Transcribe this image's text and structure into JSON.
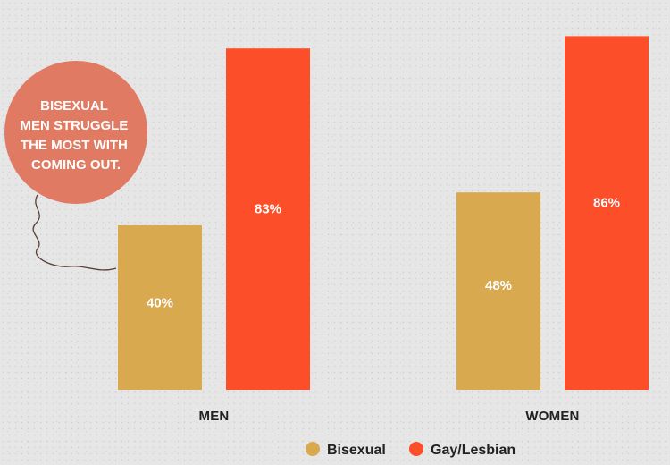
{
  "chart_data": {
    "type": "bar",
    "categories": [
      "MEN",
      "WOMEN"
    ],
    "series": [
      {
        "name": "Bisexual",
        "values": [
          40,
          48
        ],
        "labels": [
          "40%",
          "48%"
        ],
        "color": "#d9a94f"
      },
      {
        "name": "Gay/Lesbian",
        "values": [
          83,
          86
        ],
        "labels": [
          "83%",
          "86%"
        ],
        "color": "#fc4e29"
      }
    ],
    "ylim": [
      0,
      90
    ],
    "grid": false,
    "legend_placement": "bottom",
    "annotation": {
      "lines": [
        "BISEXUAL",
        "MEN STRUGGLE",
        "THE MOST WITH",
        "COMING OUT."
      ],
      "color": "#e07a63",
      "target": "MEN Bisexual"
    }
  }
}
